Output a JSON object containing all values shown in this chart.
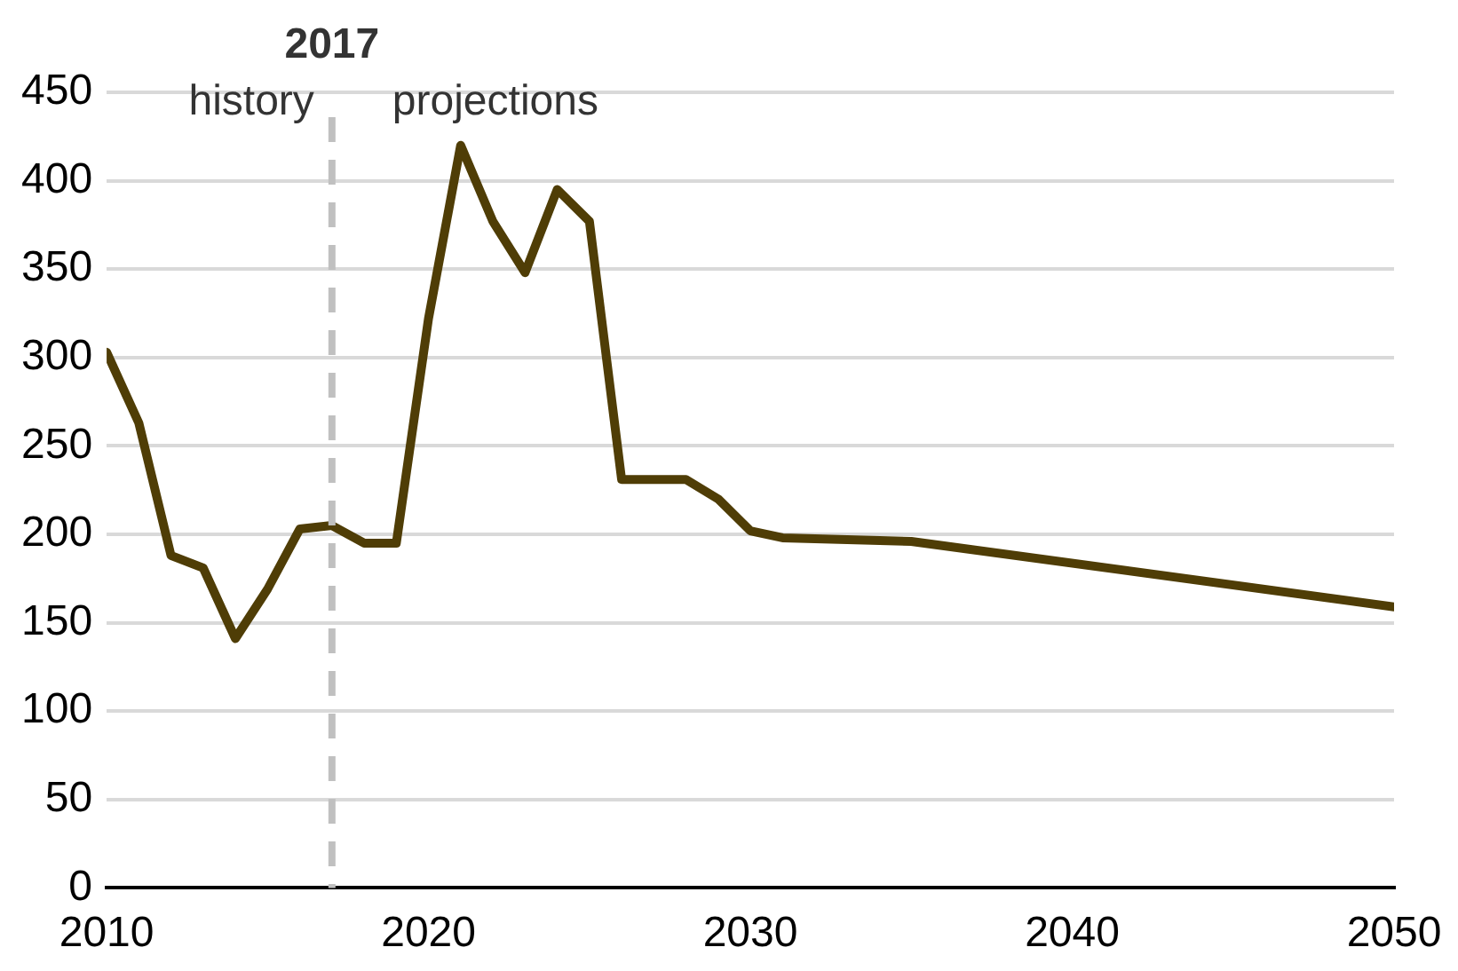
{
  "chart_data": {
    "type": "line",
    "x": [
      2010,
      2011,
      2012,
      2013,
      2014,
      2015,
      2016,
      2017,
      2018,
      2019,
      2020,
      2021,
      2022,
      2023,
      2024,
      2025,
      2026,
      2027,
      2028,
      2029,
      2030,
      2031,
      2035,
      2050
    ],
    "series": [
      {
        "color": "#4f3d06",
        "values": [
          303,
          263,
          188,
          181,
          141,
          169,
          203,
          205,
          195,
          195,
          322,
          420,
          377,
          348,
          395,
          377,
          231,
          231,
          231,
          220,
          202,
          198,
          196,
          159
        ]
      }
    ],
    "xlim": [
      2010,
      2050
    ],
    "xticks": [
      2010,
      2020,
      2030,
      2040,
      2050
    ],
    "ylim": [
      0,
      450
    ],
    "yticks": [
      0,
      50,
      100,
      150,
      200,
      250,
      300,
      350,
      400,
      450
    ],
    "grid": "y",
    "marker": "none",
    "line_style": "solid",
    "legend": false,
    "ref_lines": [
      {
        "axis": "x",
        "value": 2017,
        "label": "2017",
        "color": "#c0c0c0",
        "line_style": "dashed"
      }
    ],
    "annotations": [
      "history",
      "projections"
    ]
  }
}
